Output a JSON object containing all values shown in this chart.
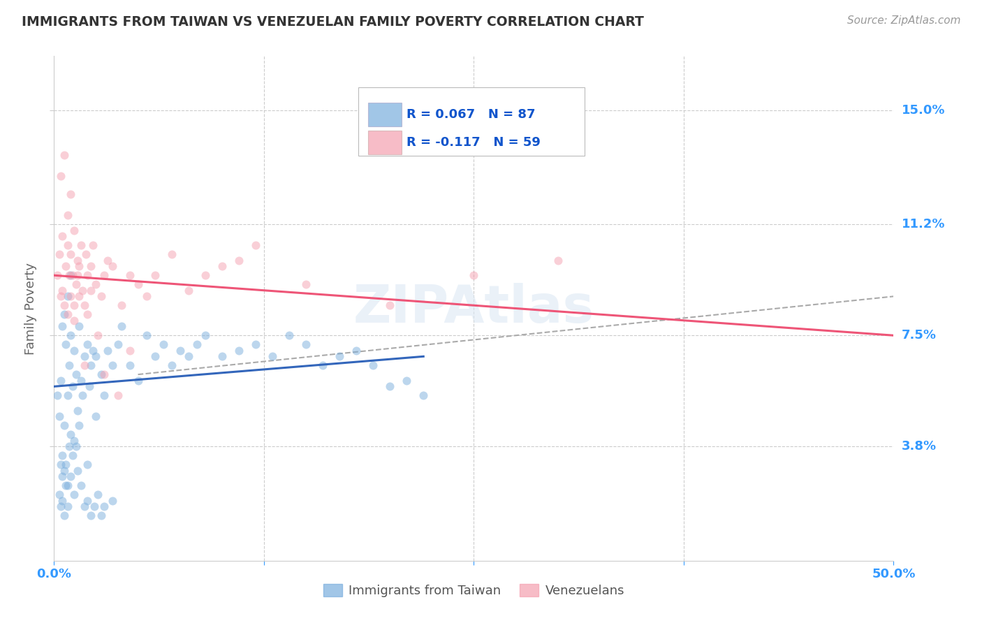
{
  "title": "IMMIGRANTS FROM TAIWAN VS VENEZUELAN FAMILY POVERTY CORRELATION CHART",
  "source": "Source: ZipAtlas.com",
  "ylabel": "Family Poverty",
  "xlim": [
    0.0,
    50.0
  ],
  "ylim": [
    0.0,
    16.8
  ],
  "yticks": [
    3.8,
    7.5,
    11.2,
    15.0
  ],
  "xticks": [
    0.0,
    12.5,
    25.0,
    37.5,
    50.0
  ],
  "xtick_labels": [
    "0.0%",
    "",
    "",
    "",
    "50.0%"
  ],
  "ytick_labels": [
    "3.8%",
    "7.5%",
    "11.2%",
    "15.0%"
  ],
  "taiwan_color": "#7aaedd",
  "venezuelan_color": "#f4a0b0",
  "taiwan_R": 0.067,
  "taiwan_N": 87,
  "venezuelan_R": -0.117,
  "venezuelan_N": 59,
  "watermark": "ZIPAtlas",
  "taiwan_scatter_x": [
    0.2,
    0.3,
    0.4,
    0.4,
    0.5,
    0.5,
    0.5,
    0.6,
    0.6,
    0.6,
    0.7,
    0.7,
    0.8,
    0.8,
    0.8,
    0.9,
    0.9,
    1.0,
    1.0,
    1.0,
    1.1,
    1.1,
    1.2,
    1.2,
    1.3,
    1.3,
    1.4,
    1.5,
    1.5,
    1.6,
    1.7,
    1.8,
    2.0,
    2.0,
    2.1,
    2.2,
    2.3,
    2.5,
    2.5,
    2.8,
    3.0,
    3.2,
    3.5,
    3.8,
    4.0,
    4.5,
    5.0,
    5.5,
    6.0,
    6.5,
    7.0,
    7.5,
    8.0,
    8.5,
    9.0,
    10.0,
    11.0,
    12.0,
    13.0,
    14.0,
    15.0,
    16.0,
    17.0,
    18.0,
    19.0,
    20.0,
    21.0,
    22.0,
    0.3,
    0.4,
    0.5,
    0.6,
    0.7,
    0.8,
    1.0,
    1.2,
    1.4,
    1.6,
    1.8,
    2.0,
    2.2,
    2.4,
    2.6,
    2.8,
    3.0,
    3.5
  ],
  "taiwan_scatter_y": [
    5.5,
    4.8,
    3.2,
    6.0,
    2.8,
    3.5,
    7.8,
    3.0,
    4.5,
    8.2,
    3.2,
    7.2,
    2.5,
    5.5,
    8.8,
    3.8,
    6.5,
    4.2,
    7.5,
    9.5,
    3.5,
    5.8,
    4.0,
    7.0,
    3.8,
    6.2,
    5.0,
    4.5,
    7.8,
    6.0,
    5.5,
    6.8,
    3.2,
    7.2,
    5.8,
    6.5,
    7.0,
    4.8,
    6.8,
    6.2,
    5.5,
    7.0,
    6.5,
    7.2,
    7.8,
    6.5,
    6.0,
    7.5,
    6.8,
    7.2,
    6.5,
    7.0,
    6.8,
    7.2,
    7.5,
    6.8,
    7.0,
    7.2,
    6.8,
    7.5,
    7.2,
    6.5,
    6.8,
    7.0,
    6.5,
    5.8,
    6.0,
    5.5,
    2.2,
    1.8,
    2.0,
    1.5,
    2.5,
    1.8,
    2.8,
    2.2,
    3.0,
    2.5,
    1.8,
    2.0,
    1.5,
    1.8,
    2.2,
    1.5,
    1.8,
    2.0
  ],
  "venezuelan_scatter_x": [
    0.2,
    0.3,
    0.4,
    0.5,
    0.5,
    0.6,
    0.7,
    0.8,
    0.8,
    0.9,
    1.0,
    1.0,
    1.1,
    1.2,
    1.2,
    1.3,
    1.4,
    1.5,
    1.5,
    1.6,
    1.7,
    1.8,
    1.9,
    2.0,
    2.0,
    2.2,
    2.3,
    2.5,
    2.8,
    3.0,
    3.2,
    3.5,
    4.0,
    4.5,
    5.0,
    5.5,
    6.0,
    7.0,
    8.0,
    9.0,
    10.0,
    11.0,
    12.0,
    15.0,
    20.0,
    25.0,
    30.0,
    0.4,
    0.6,
    0.8,
    1.0,
    1.2,
    1.4,
    1.8,
    2.2,
    2.6,
    3.0,
    3.8,
    4.5
  ],
  "venezuelan_scatter_y": [
    9.5,
    10.2,
    8.8,
    9.0,
    10.8,
    8.5,
    9.8,
    10.5,
    8.2,
    9.5,
    8.8,
    10.2,
    9.5,
    8.5,
    11.0,
    9.2,
    10.0,
    8.8,
    9.8,
    10.5,
    9.0,
    8.5,
    10.2,
    9.5,
    8.2,
    9.8,
    10.5,
    9.2,
    8.8,
    9.5,
    10.0,
    9.8,
    8.5,
    9.5,
    9.2,
    8.8,
    9.5,
    10.2,
    9.0,
    9.5,
    9.8,
    10.0,
    10.5,
    9.2,
    8.5,
    9.5,
    10.0,
    12.8,
    13.5,
    11.5,
    12.2,
    8.0,
    9.5,
    6.5,
    9.0,
    7.5,
    6.2,
    5.5,
    7.0
  ],
  "taiwan_trend_x": [
    0.0,
    22.0
  ],
  "taiwan_trend_y": [
    5.8,
    6.8
  ],
  "venezuelan_trend_x": [
    0.0,
    50.0
  ],
  "venezuelan_trend_y": [
    9.5,
    7.5
  ],
  "dashed_line_x": [
    5.0,
    50.0
  ],
  "dashed_line_y": [
    6.2,
    8.8
  ],
  "background_color": "#ffffff",
  "grid_color": "#cccccc",
  "title_color": "#333333",
  "right_label_color": "#3399ff",
  "scatter_alpha": 0.5,
  "scatter_size": 75
}
